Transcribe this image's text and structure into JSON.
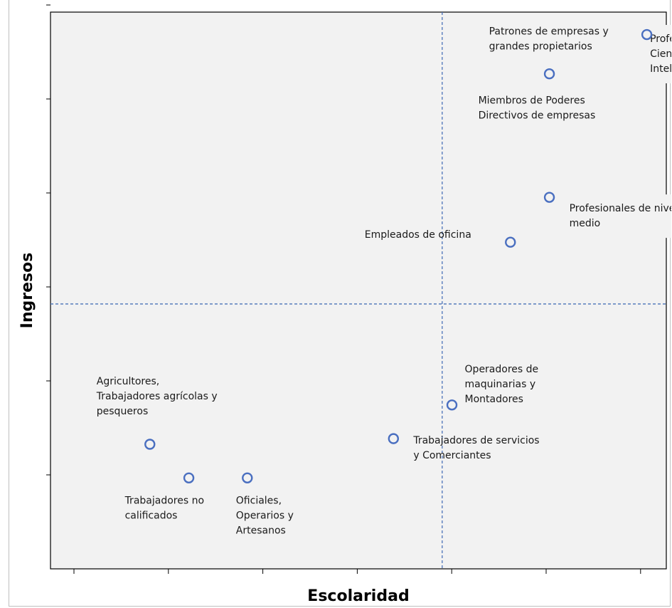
{
  "chart_data": {
    "type": "scatter",
    "xlabel": "Escolaridad",
    "ylabel": "Ingresos",
    "title": "",
    "grid": false,
    "points": [
      {
        "label": [
          "Patrones de empresas y",
          "grandes propietarios"
        ],
        "x": 6.1,
        "y": 9.5
      },
      {
        "label": [
          "Profesionales,",
          "Científicos e",
          "Intelectuales"
        ],
        "x": 6.6,
        "y": 8.2
      },
      {
        "label": [
          "Miembros de Poderes",
          "Directivos de empresas"
        ],
        "x": 5.1,
        "y": 8.8
      },
      {
        "label": [
          "Profesionales de nivel",
          "medio"
        ],
        "x": 5.1,
        "y": 6.6
      },
      {
        "label": [
          "Empleados de oficina"
        ],
        "x": 4.7,
        "y": 5.8
      },
      {
        "label": [
          "Operadores de",
          "maquinarias y",
          "Montadores"
        ],
        "x": 4.1,
        "y": 2.9
      },
      {
        "label": [
          "Trabajadores de servicios",
          "y Comerciantes"
        ],
        "x": 3.5,
        "y": 2.3
      },
      {
        "label": [
          "Agricultores,",
          "Trabajadores agrícolas y",
          "pesqueros"
        ],
        "x": 1.0,
        "y": 2.2
      },
      {
        "label": [
          "Trabajadores no",
          "calificados"
        ],
        "x": 1.4,
        "y": 1.6
      },
      {
        "label": [
          "Oficiales,",
          "Operarios y",
          "Artesanos"
        ],
        "x": 2.0,
        "y": 1.6
      }
    ],
    "reference_lines": {
      "x": 4.0,
      "y": 4.7
    },
    "xlim": [
      -0.02,
      6.3
    ],
    "ylim": [
      -0.02,
      9.9
    ]
  }
}
